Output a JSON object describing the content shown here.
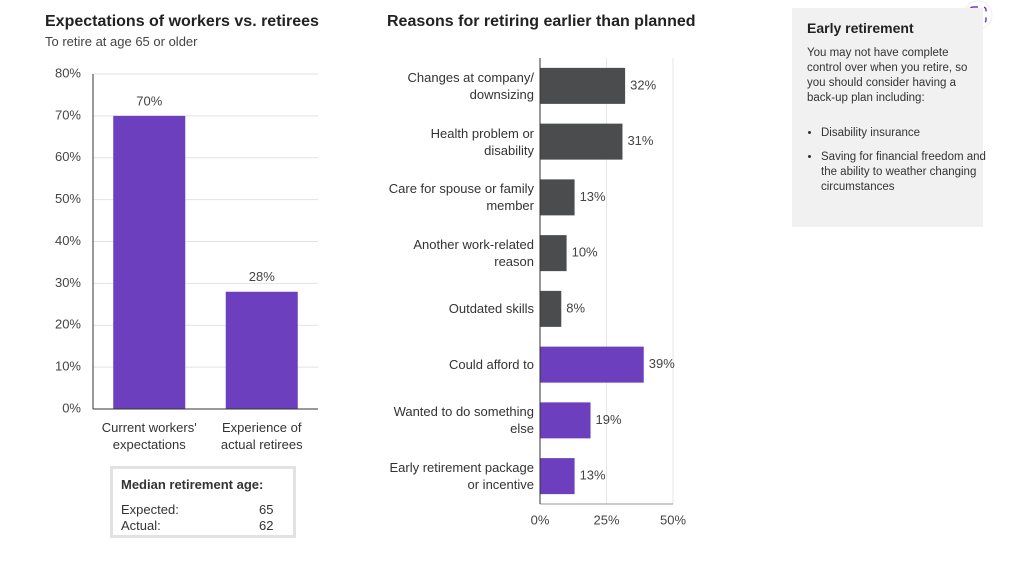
{
  "chart_data": [
    {
      "type": "bar",
      "title": "Expectations of workers vs. retirees",
      "subtitle": "To retire at age 65 or older",
      "categories": [
        "Current workers' expectations",
        "Experience of actual retirees"
      ],
      "values": [
        70,
        28
      ],
      "value_labels": [
        "70%",
        "28%"
      ],
      "color": "#6b3fbd",
      "ylim": [
        0,
        80
      ],
      "yticks": [
        {
          "value": 0,
          "label": "0%"
        },
        {
          "value": 10,
          "label": "10%"
        },
        {
          "value": 20,
          "label": "20%"
        },
        {
          "value": 30,
          "label": "30%"
        },
        {
          "value": 40,
          "label": "40%"
        },
        {
          "value": 50,
          "label": "50%"
        },
        {
          "value": 60,
          "label": "60%"
        },
        {
          "value": 70,
          "label": "70%"
        },
        {
          "value": 80,
          "label": "80%"
        }
      ],
      "grid": true
    },
    {
      "type": "bar",
      "orientation": "horizontal",
      "title": "Reasons for retiring earlier than planned",
      "categories": [
        "Changes at company/ downsizing",
        "Health problem or disability",
        "Care for spouse or family member",
        "Another work-related reason",
        "Outdated skills",
        "Could afford to",
        "Wanted to do something else",
        "Early retirement package or incentive"
      ],
      "values": [
        32,
        31,
        13,
        10,
        8,
        39,
        19,
        13
      ],
      "value_labels": [
        "32%",
        "31%",
        "13%",
        "10%",
        "8%",
        "39%",
        "19%",
        "13%"
      ],
      "colors": [
        "#4b4c4e",
        "#4b4c4e",
        "#4b4c4e",
        "#4b4c4e",
        "#4b4c4e",
        "#6b3fbd",
        "#6b3fbd",
        "#6b3fbd"
      ],
      "xlim": [
        0,
        50
      ],
      "xticks": [
        {
          "value": 0,
          "label": "0%"
        },
        {
          "value": 25,
          "label": "25%"
        },
        {
          "value": 50,
          "label": "50%"
        }
      ],
      "grid": true
    }
  ],
  "median_box": {
    "title": "Median retirement age:",
    "rows": [
      [
        "Expected:",
        65
      ],
      [
        "Actual:",
        62
      ]
    ]
  },
  "sidebar": {
    "title": "Early retirement",
    "text": "You may not have complete control over when you retire, so you should consider having a back-up plan including:",
    "bullets": [
      "Disability insurance",
      "Saving for financial freedom and the ability to weather changing circumstances"
    ]
  }
}
